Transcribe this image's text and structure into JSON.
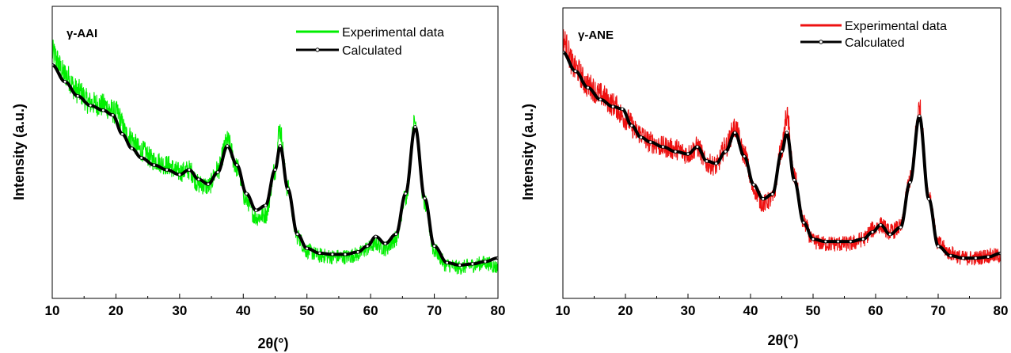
{
  "chart_data": [
    {
      "type": "line",
      "panel_label": "γ-AAI",
      "xlabel": "2θ(°)",
      "ylabel": "Intensity (a.u.)",
      "xlim": [
        10,
        80
      ],
      "xticks": [
        "10",
        "20",
        "30",
        "40",
        "50",
        "60",
        "70",
        "80"
      ],
      "ylim": [
        0,
        1
      ],
      "y_tick_labels": false,
      "legend_position": "top-right",
      "series": [
        {
          "name": "Experimental data",
          "color": "#00ee00",
          "style": "noisy-line",
          "x": [
            10,
            12,
            14,
            16,
            18,
            20,
            22,
            24,
            26,
            28,
            30,
            31.5,
            33,
            34.5,
            36,
            37.5,
            39,
            40.5,
            42,
            43.5,
            45,
            45.7,
            47,
            48.5,
            50,
            52,
            54,
            56,
            58,
            59.5,
            60.8,
            62.3,
            64,
            65.5,
            67,
            68.5,
            70,
            72,
            74,
            76,
            78,
            80
          ],
          "y": [
            0.93,
            0.84,
            0.77,
            0.72,
            0.71,
            0.68,
            0.58,
            0.52,
            0.48,
            0.46,
            0.43,
            0.44,
            0.38,
            0.37,
            0.44,
            0.56,
            0.45,
            0.31,
            0.24,
            0.25,
            0.44,
            0.61,
            0.36,
            0.16,
            0.1,
            0.08,
            0.075,
            0.075,
            0.085,
            0.11,
            0.13,
            0.11,
            0.15,
            0.33,
            0.64,
            0.3,
            0.1,
            0.04,
            0.03,
            0.04,
            0.05,
            0.03
          ]
        },
        {
          "name": "Calculated",
          "color": "#000000",
          "style": "line-with-markers",
          "x": [
            10,
            12,
            14,
            16,
            18,
            19.5,
            21,
            22.5,
            24,
            26,
            28,
            30,
            31.5,
            33,
            34.5,
            36,
            37.5,
            39,
            40.5,
            42,
            43.5,
            45,
            45.8,
            47,
            48.5,
            50,
            52,
            54,
            56,
            58,
            59.5,
            60.8,
            62.3,
            64,
            65.5,
            67,
            68.5,
            70,
            72,
            74,
            76,
            78,
            80
          ],
          "y": [
            0.88,
            0.81,
            0.75,
            0.71,
            0.69,
            0.67,
            0.59,
            0.53,
            0.49,
            0.46,
            0.44,
            0.42,
            0.44,
            0.4,
            0.38,
            0.43,
            0.54,
            0.46,
            0.34,
            0.27,
            0.29,
            0.44,
            0.54,
            0.36,
            0.17,
            0.11,
            0.09,
            0.085,
            0.085,
            0.095,
            0.12,
            0.16,
            0.13,
            0.17,
            0.34,
            0.62,
            0.32,
            0.12,
            0.05,
            0.04,
            0.045,
            0.055,
            0.07
          ]
        }
      ]
    },
    {
      "type": "line",
      "panel_label": "γ-ANE",
      "xlabel": "2θ(°)",
      "ylabel": "Intensity (a.u.)",
      "xlim": [
        10,
        80
      ],
      "xticks": [
        "10",
        "20",
        "30",
        "40",
        "50",
        "60",
        "70",
        "80"
      ],
      "ylim": [
        0,
        1
      ],
      "y_tick_labels": false,
      "legend_position": "top-right",
      "series": [
        {
          "name": "Experimental data",
          "color": "#ee1111",
          "style": "noisy-line",
          "x": [
            10,
            12,
            14,
            16,
            18,
            20,
            22,
            24,
            26,
            28,
            30,
            31.5,
            33,
            34.5,
            36,
            37.5,
            39,
            40.5,
            42,
            43.5,
            45,
            45.8,
            47,
            48.5,
            50,
            52,
            54,
            56,
            58,
            59.5,
            60.8,
            62.3,
            64,
            65.5,
            67,
            68.5,
            70,
            72,
            74,
            76,
            78,
            80
          ],
          "y": [
            0.99,
            0.87,
            0.8,
            0.76,
            0.72,
            0.66,
            0.6,
            0.56,
            0.54,
            0.53,
            0.51,
            0.54,
            0.47,
            0.46,
            0.54,
            0.62,
            0.51,
            0.36,
            0.3,
            0.32,
            0.53,
            0.67,
            0.41,
            0.22,
            0.14,
            0.13,
            0.13,
            0.13,
            0.15,
            0.19,
            0.21,
            0.18,
            0.2,
            0.4,
            0.7,
            0.34,
            0.13,
            0.09,
            0.07,
            0.07,
            0.08,
            0.08
          ]
        },
        {
          "name": "Calculated",
          "color": "#000000",
          "style": "line-with-markers",
          "x": [
            10,
            12,
            14,
            16,
            18,
            19.5,
            21,
            22.5,
            24,
            26,
            28,
            30,
            31.5,
            33,
            34.5,
            36,
            37.5,
            39,
            40.5,
            42,
            43.5,
            45,
            45.8,
            47,
            48.5,
            50,
            52,
            54,
            56,
            58,
            59.5,
            60.8,
            62.3,
            64,
            65.5,
            67,
            68.5,
            70,
            72,
            74,
            76,
            78,
            80
          ],
          "y": [
            0.94,
            0.86,
            0.79,
            0.74,
            0.71,
            0.7,
            0.63,
            0.58,
            0.56,
            0.54,
            0.52,
            0.51,
            0.54,
            0.48,
            0.47,
            0.52,
            0.6,
            0.5,
            0.38,
            0.32,
            0.34,
            0.52,
            0.6,
            0.4,
            0.22,
            0.15,
            0.14,
            0.14,
            0.14,
            0.15,
            0.18,
            0.21,
            0.17,
            0.2,
            0.39,
            0.67,
            0.32,
            0.12,
            0.08,
            0.07,
            0.07,
            0.075,
            0.09
          ]
        }
      ]
    }
  ]
}
